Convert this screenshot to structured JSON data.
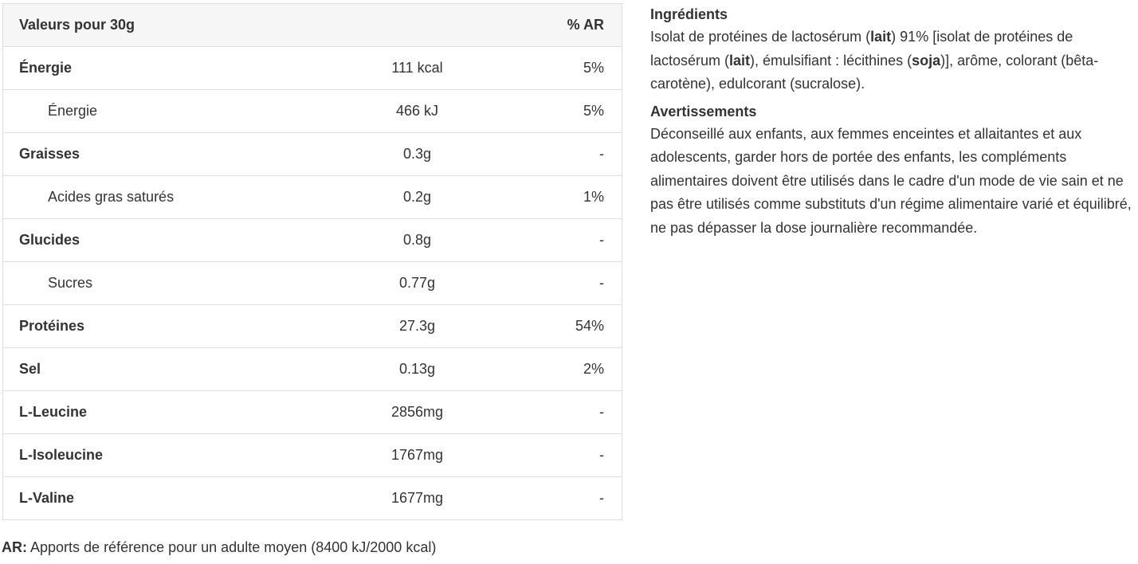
{
  "table": {
    "header": {
      "name": "Valeurs pour 30g",
      "amount": "",
      "ar": "% AR"
    },
    "rows": [
      {
        "name": "Énergie",
        "amount": "111 kcal",
        "ar": "5%",
        "level": "main"
      },
      {
        "name": "Énergie",
        "amount": "466 kJ",
        "ar": "5%",
        "level": "sub"
      },
      {
        "name": "Graisses",
        "amount": "0.3g",
        "ar": "-",
        "level": "main"
      },
      {
        "name": "Acides gras saturés",
        "amount": "0.2g",
        "ar": "1%",
        "level": "sub"
      },
      {
        "name": "Glucides",
        "amount": "0.8g",
        "ar": "-",
        "level": "main"
      },
      {
        "name": "Sucres",
        "amount": "0.77g",
        "ar": "-",
        "level": "sub"
      },
      {
        "name": "Protéines",
        "amount": "27.3g",
        "ar": "54%",
        "level": "main"
      },
      {
        "name": "Sel",
        "amount": "0.13g",
        "ar": "2%",
        "level": "main"
      },
      {
        "name": "L-Leucine",
        "amount": "2856mg",
        "ar": "-",
        "level": "main"
      },
      {
        "name": "L-Isoleucine",
        "amount": "1767mg",
        "ar": "-",
        "level": "main"
      },
      {
        "name": "L-Valine",
        "amount": "1677mg",
        "ar": "-",
        "level": "main"
      }
    ]
  },
  "footnote": {
    "label": "AR:",
    "text": " Apports de référence pour un adulte moyen (8400 kJ/2000 kcal)"
  },
  "ingredients": {
    "title": "Ingrédients",
    "parts": [
      {
        "text": "Isolat de protéines de lactosérum (",
        "bold": false
      },
      {
        "text": "lait",
        "bold": true
      },
      {
        "text": ") 91% [isolat de protéines de lactosérum (",
        "bold": false
      },
      {
        "text": "lait",
        "bold": true
      },
      {
        "text": "), émulsifiant : lécithines (",
        "bold": false
      },
      {
        "text": "soja",
        "bold": true
      },
      {
        "text": ")], arôme, colorant (bêta-carotène), edulcorant (sucralose).",
        "bold": false
      }
    ]
  },
  "warnings": {
    "title": "Avertissements",
    "text": "Déconseillé aux enfants, aux femmes enceintes et allaitantes et aux adolescents, garder hors de portée des enfants, les compléments alimentaires doivent être utilisés dans le cadre d'un mode de vie sain et ne pas être utilisés comme substituts d'un régime alimentaire varié et équilibré, ne pas dépasser la dose journalière recommandée."
  }
}
